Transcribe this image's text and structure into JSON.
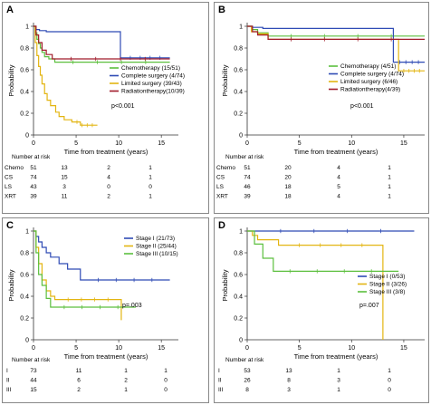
{
  "panels": [
    {
      "letter": "A",
      "ylabel": "Probability",
      "xlabel": "Time from treatment (years)",
      "pvalue": "p<0.001",
      "risk_title": "Number at risk",
      "chart_data": {
        "type": "line",
        "title": "",
        "xlabel": "Time from treatment (years)",
        "ylabel": "Probability",
        "xlim": [
          0,
          17
        ],
        "ylim": [
          0,
          1
        ],
        "xticks": [
          0,
          5,
          10,
          15
        ],
        "yticks": [
          0.0,
          0.2,
          0.4,
          0.6,
          0.8,
          1.0
        ],
        "series": [
          {
            "name": "Chemotherapy (15/51)",
            "color": "#5cbf3e",
            "x": [
              0,
              0.2,
              0.4,
              0.6,
              0.8,
              1.0,
              1.3,
              1.8,
              2.5,
              16
            ],
            "y": [
              1.0,
              0.94,
              0.88,
              0.84,
              0.8,
              0.76,
              0.72,
              0.7,
              0.67,
              0.67
            ]
          },
          {
            "name": "Complete surgery (4/74)",
            "color": "#2f4bb5",
            "x": [
              0,
              0.3,
              0.7,
              1.5,
              10.2,
              10.2,
              16
            ],
            "y": [
              1.0,
              0.97,
              0.96,
              0.95,
              0.95,
              0.71,
              0.71
            ]
          },
          {
            "name": "Limited surgery (39/43)",
            "color": "#e3b512",
            "x": [
              0,
              0.2,
              0.4,
              0.6,
              0.8,
              1.0,
              1.3,
              1.6,
              2.0,
              2.6,
              3.0,
              3.6,
              4.5,
              5.5,
              7.5
            ],
            "y": [
              1.0,
              0.85,
              0.73,
              0.63,
              0.55,
              0.47,
              0.38,
              0.32,
              0.27,
              0.21,
              0.17,
              0.14,
              0.12,
              0.09,
              0.09
            ]
          },
          {
            "name": "Radiationtherapy(10/39)",
            "color": "#a11b2a",
            "x": [
              0,
              0.3,
              0.6,
              1.0,
              1.5,
              2.2,
              16
            ],
            "y": [
              1.0,
              0.92,
              0.85,
              0.78,
              0.74,
              0.7,
              0.7
            ]
          }
        ],
        "legend": "center-right",
        "grid": false
      },
      "risk": {
        "header": "Number at risk",
        "rows": [
          {
            "label": "Chemo",
            "values": [
              "51",
              "13",
              "2",
              "1"
            ]
          },
          {
            "label": "CS",
            "values": [
              "74",
              "15",
              "4",
              "1"
            ]
          },
          {
            "label": "LS",
            "values": [
              "43",
              "3",
              "0",
              "0"
            ]
          },
          {
            "label": "XRT",
            "values": [
              "39",
              "11",
              "2",
              "1"
            ]
          }
        ]
      }
    },
    {
      "letter": "B",
      "ylabel": "Probability",
      "xlabel": "Time from treatment (years)",
      "pvalue": "p<0.001",
      "risk_title": "Number at risk",
      "chart_data": {
        "type": "line",
        "title": "",
        "xlabel": "Time from treatment (years)",
        "ylabel": "Probability",
        "xlim": [
          0,
          17
        ],
        "ylim": [
          0,
          1
        ],
        "xticks": [
          0,
          5,
          10,
          15
        ],
        "yticks": [
          0.0,
          0.2,
          0.4,
          0.6,
          0.8,
          1.0
        ],
        "series": [
          {
            "name": "Chemotherapy (4/51)",
            "color": "#5cbf3e",
            "x": [
              0,
              0.5,
              1.0,
              2.0,
              17
            ],
            "y": [
              1.0,
              0.97,
              0.94,
              0.91,
              0.91
            ]
          },
          {
            "name": "Complete surgery (4/74)",
            "color": "#2f4bb5",
            "x": [
              0,
              0.5,
              1.5,
              14.0,
              14.0,
              17
            ],
            "y": [
              1.0,
              0.99,
              0.98,
              0.98,
              0.67,
              0.67
            ]
          },
          {
            "name": "Limited surgery (6/46)",
            "color": "#e3b512",
            "x": [
              0,
              0.4,
              1.0,
              2.0,
              14.5,
              14.5,
              17
            ],
            "y": [
              1.0,
              0.95,
              0.93,
              0.88,
              0.88,
              0.59,
              0.59
            ]
          },
          {
            "name": "Radiationtherapy(4/39)",
            "color": "#a11b2a",
            "x": [
              0,
              0.5,
              1.0,
              2.0,
              17
            ],
            "y": [
              1.0,
              0.95,
              0.92,
              0.88,
              0.88
            ]
          }
        ],
        "legend": "center-right",
        "grid": false
      },
      "risk": {
        "header": "Number at risk",
        "rows": [
          {
            "label": "Chemo",
            "values": [
              "51",
              "20",
              "4",
              "1"
            ]
          },
          {
            "label": "CS",
            "values": [
              "74",
              "20",
              "4",
              "1"
            ]
          },
          {
            "label": "LS",
            "values": [
              "46",
              "18",
              "5",
              "1"
            ]
          },
          {
            "label": "XRT",
            "values": [
              "39",
              "18",
              "4",
              "1"
            ]
          }
        ]
      }
    },
    {
      "letter": "C",
      "ylabel": "Probability",
      "xlabel": "Time from treatment (years)",
      "pvalue": "p=.003",
      "risk_title": "Number at risk",
      "chart_data": {
        "type": "line",
        "title": "",
        "xlabel": "Time from treatment (years)",
        "ylabel": "Probability",
        "xlim": [
          0,
          17
        ],
        "ylim": [
          0,
          1
        ],
        "xticks": [
          0,
          5,
          10,
          15
        ],
        "yticks": [
          0.0,
          0.2,
          0.4,
          0.6,
          0.8,
          1.0
        ],
        "series": [
          {
            "name": "Stage I (21/73)",
            "color": "#2f4bb5",
            "x": [
              0,
              0.3,
              0.6,
              1.0,
              1.5,
              2.0,
              3.0,
              4.0,
              5.5,
              5.5,
              16
            ],
            "y": [
              1.0,
              0.95,
              0.9,
              0.85,
              0.8,
              0.76,
              0.7,
              0.65,
              0.6,
              0.55,
              0.55
            ]
          },
          {
            "name": "Stage II (25/44)",
            "color": "#e3b512",
            "x": [
              0,
              0.3,
              0.6,
              1.0,
              1.5,
              2.0,
              2.5,
              10.3,
              10.3
            ],
            "y": [
              1.0,
              0.85,
              0.7,
              0.55,
              0.45,
              0.4,
              0.37,
              0.37,
              0.18
            ]
          },
          {
            "name": "Stage III (10/15)",
            "color": "#5cbf3e",
            "x": [
              0,
              0.3,
              0.6,
              1.0,
              1.5,
              2.0,
              12.0
            ],
            "y": [
              1.0,
              0.8,
              0.6,
              0.5,
              0.38,
              0.3,
              0.3
            ]
          }
        ],
        "legend": "top-right",
        "grid": false
      },
      "risk": {
        "header": "Number at risk",
        "rows": [
          {
            "label": "I",
            "values": [
              "73",
              "11",
              "1",
              "1"
            ]
          },
          {
            "label": "II",
            "values": [
              "44",
              "6",
              "2",
              "0"
            ]
          },
          {
            "label": "III",
            "values": [
              "15",
              "2",
              "1",
              "0"
            ]
          }
        ]
      }
    },
    {
      "letter": "D",
      "ylabel": "Probability",
      "xlabel": "Time from treatment (years)",
      "pvalue": "p=.007",
      "risk_title": "Number at risk",
      "chart_data": {
        "type": "line",
        "title": "",
        "xlabel": "Time from treatment (years)",
        "ylabel": "Probability",
        "xlim": [
          0,
          17
        ],
        "ylim": [
          0,
          1
        ],
        "xticks": [
          0,
          5,
          10,
          15
        ],
        "yticks": [
          0.0,
          0.2,
          0.4,
          0.6,
          0.8,
          1.0
        ],
        "series": [
          {
            "name": "Stage I (0/53)",
            "color": "#2f4bb5",
            "x": [
              0,
              16
            ],
            "y": [
              1.0,
              1.0
            ]
          },
          {
            "name": "Stage II (3/26)",
            "color": "#e3b512",
            "x": [
              0,
              0.5,
              1.0,
              3.0,
              13.0,
              13.0
            ],
            "y": [
              1.0,
              0.96,
              0.92,
              0.87,
              0.87,
              0.0
            ]
          },
          {
            "name": "Stage III (3/8)",
            "color": "#5cbf3e",
            "x": [
              0,
              0.7,
              1.5,
              2.5,
              14.5
            ],
            "y": [
              1.0,
              0.88,
              0.75,
              0.63,
              0.63
            ]
          }
        ],
        "legend": "center-right",
        "grid": false
      },
      "risk": {
        "header": "Number at risk",
        "rows": [
          {
            "label": "I",
            "values": [
              "53",
              "13",
              "1",
              "1"
            ]
          },
          {
            "label": "II",
            "values": [
              "26",
              "8",
              "3",
              "0"
            ]
          },
          {
            "label": "III",
            "values": [
              "8",
              "3",
              "1",
              "0"
            ]
          }
        ]
      }
    }
  ]
}
